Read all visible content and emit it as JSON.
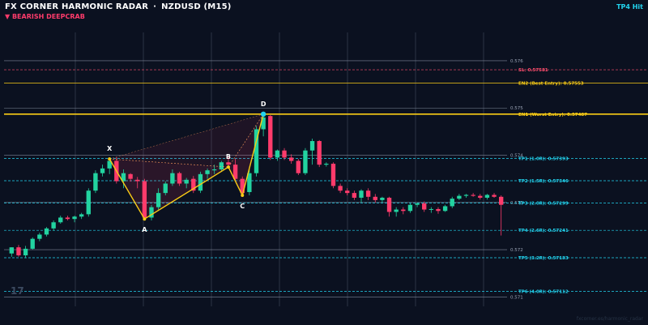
{
  "header": {
    "title": "FX CORNER HARMONIC RADAR",
    "symbol": "NZDUSD (M15)",
    "pattern": "▼ BEARISH  DEEPCRAB",
    "status": "TP4 Hit"
  },
  "watermark": "17",
  "footer": "fxcorner.es/harmonic_radar",
  "colors": {
    "background": "#0b1120",
    "bull": "#22d3a0",
    "bear": "#ff3b6b",
    "pattern": "#facc15",
    "sl": "#ff4d6d",
    "entry": "#facc15",
    "tp": "#22d3ee",
    "grid": "#3a4356"
  },
  "chart_data": {
    "type": "candlestick",
    "ylim": [
      0.5708,
      0.5766
    ],
    "y_ticks": [
      {
        "value": 0.571,
        "label": "0.571"
      },
      {
        "value": 0.572,
        "label": "0.572"
      },
      {
        "value": 0.573,
        "label": "0.573"
      },
      {
        "value": 0.574,
        "label": "0.574"
      },
      {
        "value": 0.575,
        "label": "0.575"
      },
      {
        "value": 0.576,
        "label": "0.576"
      }
    ],
    "candles": [
      {
        "o": 0.57192,
        "h": 0.57205,
        "l": 0.57185,
        "c": 0.57205
      },
      {
        "o": 0.57205,
        "h": 0.5721,
        "l": 0.57185,
        "c": 0.57188
      },
      {
        "o": 0.57188,
        "h": 0.57208,
        "l": 0.57182,
        "c": 0.57202
      },
      {
        "o": 0.57202,
        "h": 0.57226,
        "l": 0.572,
        "c": 0.57223
      },
      {
        "o": 0.57223,
        "h": 0.57236,
        "l": 0.57218,
        "c": 0.57232
      },
      {
        "o": 0.57232,
        "h": 0.57248,
        "l": 0.57228,
        "c": 0.57245
      },
      {
        "o": 0.57245,
        "h": 0.57262,
        "l": 0.5724,
        "c": 0.57258
      },
      {
        "o": 0.57258,
        "h": 0.57272,
        "l": 0.57255,
        "c": 0.57268
      },
      {
        "o": 0.57268,
        "h": 0.57272,
        "l": 0.57262,
        "c": 0.57265
      },
      {
        "o": 0.57265,
        "h": 0.57272,
        "l": 0.57258,
        "c": 0.5727
      },
      {
        "o": 0.5727,
        "h": 0.57278,
        "l": 0.57265,
        "c": 0.57275
      },
      {
        "o": 0.57275,
        "h": 0.5733,
        "l": 0.5727,
        "c": 0.57325
      },
      {
        "o": 0.57325,
        "h": 0.57368,
        "l": 0.5732,
        "c": 0.57362
      },
      {
        "o": 0.57362,
        "h": 0.5738,
        "l": 0.57355,
        "c": 0.57372
      },
      {
        "o": 0.57372,
        "h": 0.57392,
        "l": 0.5736,
        "c": 0.57388
      },
      {
        "o": 0.57388,
        "h": 0.57396,
        "l": 0.5734,
        "c": 0.57345
      },
      {
        "o": 0.57345,
        "h": 0.5737,
        "l": 0.5733,
        "c": 0.57362
      },
      {
        "o": 0.5736,
        "h": 0.57362,
        "l": 0.57344,
        "c": 0.5735
      },
      {
        "o": 0.57348,
        "h": 0.57354,
        "l": 0.5733,
        "c": 0.57345
      },
      {
        "o": 0.57345,
        "h": 0.5735,
        "l": 0.57265,
        "c": 0.57268
      },
      {
        "o": 0.57268,
        "h": 0.57295,
        "l": 0.57262,
        "c": 0.5729
      },
      {
        "o": 0.5729,
        "h": 0.5733,
        "l": 0.57285,
        "c": 0.5732
      },
      {
        "o": 0.5732,
        "h": 0.57345,
        "l": 0.57315,
        "c": 0.5734
      },
      {
        "o": 0.5734,
        "h": 0.5737,
        "l": 0.57335,
        "c": 0.57362
      },
      {
        "o": 0.57362,
        "h": 0.57365,
        "l": 0.57335,
        "c": 0.5734
      },
      {
        "o": 0.5734,
        "h": 0.57352,
        "l": 0.5733,
        "c": 0.57348
      },
      {
        "o": 0.5735,
        "h": 0.57356,
        "l": 0.5732,
        "c": 0.57325
      },
      {
        "o": 0.57325,
        "h": 0.57365,
        "l": 0.5732,
        "c": 0.5736
      },
      {
        "o": 0.5736,
        "h": 0.57372,
        "l": 0.5735,
        "c": 0.57368
      },
      {
        "o": 0.57368,
        "h": 0.5738,
        "l": 0.5736,
        "c": 0.5737
      },
      {
        "o": 0.5737,
        "h": 0.57388,
        "l": 0.57365,
        "c": 0.57385
      },
      {
        "o": 0.57385,
        "h": 0.57398,
        "l": 0.57375,
        "c": 0.5738
      },
      {
        "o": 0.5738,
        "h": 0.57392,
        "l": 0.57345,
        "c": 0.5735
      },
      {
        "o": 0.5735,
        "h": 0.57355,
        "l": 0.57315,
        "c": 0.5732
      },
      {
        "o": 0.57322,
        "h": 0.5737,
        "l": 0.57315,
        "c": 0.57362
      },
      {
        "o": 0.57362,
        "h": 0.57462,
        "l": 0.57355,
        "c": 0.57455
      },
      {
        "o": 0.57455,
        "h": 0.57487,
        "l": 0.5744,
        "c": 0.5748
      },
      {
        "o": 0.57483,
        "h": 0.57485,
        "l": 0.5739,
        "c": 0.57395
      },
      {
        "o": 0.57395,
        "h": 0.57412,
        "l": 0.57388,
        "c": 0.5741
      },
      {
        "o": 0.5741,
        "h": 0.57415,
        "l": 0.5739,
        "c": 0.57395
      },
      {
        "o": 0.57395,
        "h": 0.57402,
        "l": 0.57382,
        "c": 0.57388
      },
      {
        "o": 0.57388,
        "h": 0.57392,
        "l": 0.57358,
        "c": 0.57362
      },
      {
        "o": 0.57362,
        "h": 0.57415,
        "l": 0.57358,
        "c": 0.5741
      },
      {
        "o": 0.5741,
        "h": 0.57435,
        "l": 0.5738,
        "c": 0.5743
      },
      {
        "o": 0.5743,
        "h": 0.57432,
        "l": 0.57375,
        "c": 0.5738
      },
      {
        "o": 0.5738,
        "h": 0.57385,
        "l": 0.57376,
        "c": 0.57382
      },
      {
        "o": 0.57382,
        "h": 0.57385,
        "l": 0.5733,
        "c": 0.57335
      },
      {
        "o": 0.57335,
        "h": 0.5734,
        "l": 0.5732,
        "c": 0.57325
      },
      {
        "o": 0.57325,
        "h": 0.5733,
        "l": 0.57315,
        "c": 0.5732
      },
      {
        "o": 0.5732,
        "h": 0.57325,
        "l": 0.57305,
        "c": 0.5731
      },
      {
        "o": 0.5731,
        "h": 0.57328,
        "l": 0.573,
        "c": 0.57325
      },
      {
        "o": 0.57325,
        "h": 0.5733,
        "l": 0.57305,
        "c": 0.57312
      },
      {
        "o": 0.57312,
        "h": 0.57318,
        "l": 0.573,
        "c": 0.57305
      },
      {
        "o": 0.57305,
        "h": 0.57312,
        "l": 0.573,
        "c": 0.5731
      },
      {
        "o": 0.5731,
        "h": 0.57312,
        "l": 0.5727,
        "c": 0.5728
      },
      {
        "o": 0.5728,
        "h": 0.5729,
        "l": 0.5727,
        "c": 0.57285
      },
      {
        "o": 0.57285,
        "h": 0.5729,
        "l": 0.57275,
        "c": 0.57282
      },
      {
        "o": 0.57282,
        "h": 0.57298,
        "l": 0.57278,
        "c": 0.57295
      },
      {
        "o": 0.57295,
        "h": 0.573,
        "l": 0.5729,
        "c": 0.57298
      },
      {
        "o": 0.57298,
        "h": 0.57302,
        "l": 0.5728,
        "c": 0.57285
      },
      {
        "o": 0.57285,
        "h": 0.5729,
        "l": 0.57278,
        "c": 0.57286
      },
      {
        "o": 0.57286,
        "h": 0.5729,
        "l": 0.57276,
        "c": 0.57282
      },
      {
        "o": 0.57282,
        "h": 0.57295,
        "l": 0.5728,
        "c": 0.57292
      },
      {
        "o": 0.57292,
        "h": 0.57312,
        "l": 0.57288,
        "c": 0.57308
      },
      {
        "o": 0.57308,
        "h": 0.57318,
        "l": 0.57305,
        "c": 0.57314
      },
      {
        "o": 0.57314,
        "h": 0.57318,
        "l": 0.5731,
        "c": 0.57316
      },
      {
        "o": 0.57316,
        "h": 0.5732,
        "l": 0.57312,
        "c": 0.57314
      },
      {
        "o": 0.57314,
        "h": 0.57318,
        "l": 0.57306,
        "c": 0.5731
      },
      {
        "o": 0.5731,
        "h": 0.57318,
        "l": 0.57306,
        "c": 0.57316
      },
      {
        "o": 0.57316,
        "h": 0.5732,
        "l": 0.5731,
        "c": 0.57312
      },
      {
        "o": 0.57312,
        "h": 0.57315,
        "l": 0.5723,
        "c": 0.57295
      }
    ],
    "pattern": {
      "points": [
        {
          "label": "X",
          "index": 14,
          "price": 0.57392
        },
        {
          "label": "A",
          "index": 19,
          "price": 0.57265
        },
        {
          "label": "B",
          "index": 31,
          "price": 0.57375
        },
        {
          "label": "C",
          "index": 33,
          "price": 0.57315
        },
        {
          "label": "D",
          "index": 36,
          "price": 0.57487
        }
      ]
    },
    "levels": [
      {
        "kind": "sl",
        "price": 0.57581,
        "label": "SL: 0.57581"
      },
      {
        "kind": "entry",
        "price": 0.57553,
        "label": "EN2 (Best Entry): 0.57553"
      },
      {
        "kind": "entry",
        "price": 0.57487,
        "label": "EN1 (Worst Entry): 0.57487"
      },
      {
        "kind": "tp",
        "price": 0.57393,
        "label": "TP1 (1.0R): 0.57393"
      },
      {
        "kind": "tp",
        "price": 0.57346,
        "label": "TP2 (1.5R): 0.57346"
      },
      {
        "kind": "tp",
        "price": 0.57299,
        "label": "TP3 (2.0R): 0.57299"
      },
      {
        "kind": "tp",
        "price": 0.57241,
        "label": "TP4 (2.6R): 0.57241"
      },
      {
        "kind": "tp",
        "price": 0.57183,
        "label": "TP5 (3.2R): 0.57183"
      },
      {
        "kind": "tp",
        "price": 0.57112,
        "label": "TP6 (4.0R): 0.57112"
      }
    ]
  }
}
